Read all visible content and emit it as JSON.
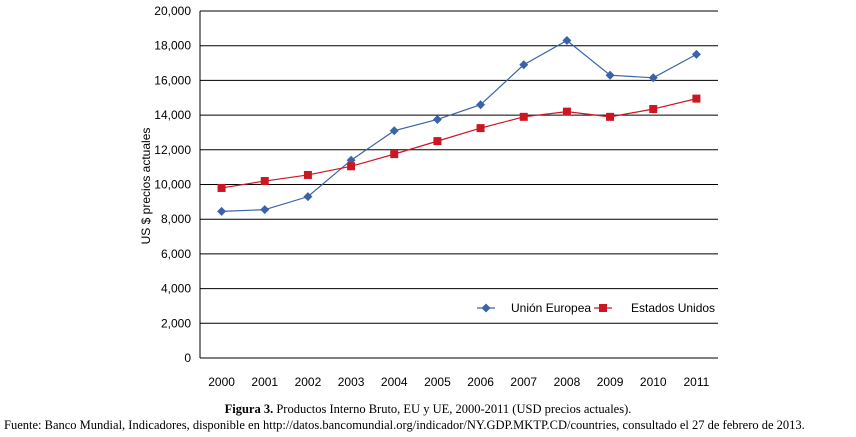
{
  "chart_data": {
    "type": "line",
    "title": "",
    "xlabel": "",
    "ylabel": "US $ precios actuales",
    "ylim": [
      0,
      20000
    ],
    "yticks": [
      "0",
      "2,000",
      "4,000",
      "6,000",
      "8,000",
      "10,000",
      "12,000",
      "14,000",
      "16,000",
      "18,000",
      "20,000"
    ],
    "ytick_values": [
      0,
      2000,
      4000,
      6000,
      8000,
      10000,
      12000,
      14000,
      16000,
      18000,
      20000
    ],
    "categories": [
      "2000",
      "2001",
      "2002",
      "2003",
      "2004",
      "2005",
      "2006",
      "2007",
      "2008",
      "2009",
      "2010",
      "2011"
    ],
    "grid": "horizontal",
    "legend_position": "bottom-right",
    "series": [
      {
        "name": "Unión Europea",
        "color": "#3a63a8",
        "marker": "diamond",
        "values": [
          8450,
          8550,
          9300,
          11400,
          13100,
          13750,
          14600,
          16900,
          18300,
          16300,
          16150,
          17500
        ]
      },
      {
        "name": "Estados Unidos",
        "color": "#cc1622",
        "marker": "square",
        "values": [
          9800,
          10200,
          10550,
          11050,
          11750,
          12500,
          13250,
          13900,
          14200,
          13900,
          14350,
          14950
        ]
      }
    ]
  },
  "caption": {
    "label": "Figura 3.",
    "text": " Productos Interno Bruto, EU y UE, 2000-2011 (USD precios actuales)."
  },
  "source": "Fuente: Banco Mundial, Indicadores, disponible en http://datos.bancomundial.org/indicador/NY.GDP.MKTP.CD/countries, consultado el 27 de febrero de 2013."
}
